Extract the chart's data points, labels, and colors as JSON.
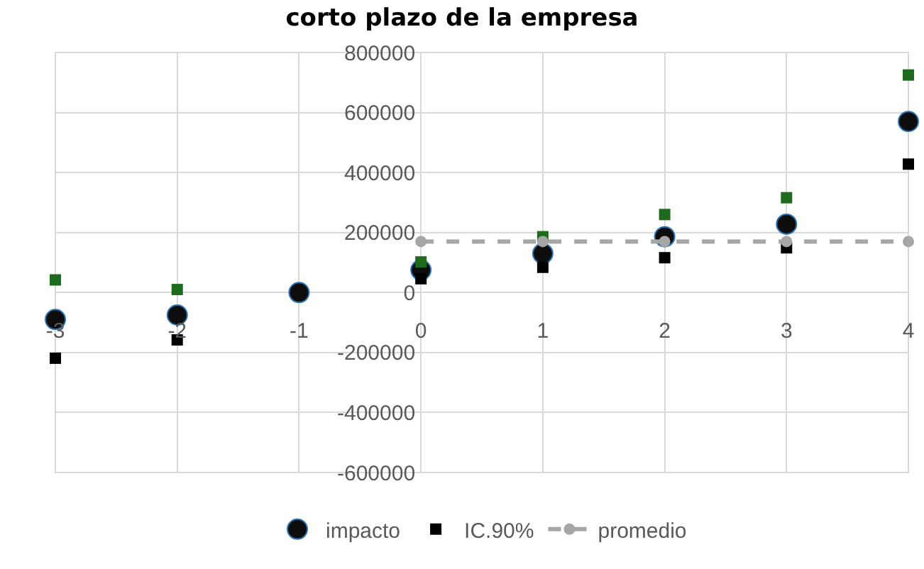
{
  "chart_data": {
    "type": "scatter",
    "title": "corto plazo de la empresa",
    "xlim": [
      -3,
      4
    ],
    "xticks": [
      -3,
      -2,
      -1,
      0,
      1,
      2,
      3,
      4
    ],
    "ylim": [
      -600000,
      800000
    ],
    "yticks": [
      -600000,
      -400000,
      -200000,
      0,
      200000,
      400000,
      600000,
      800000
    ],
    "grid": true,
    "legend": "bottom",
    "marker": "circle",
    "series": [
      {
        "name": "impacto",
        "color": "#0d0d0d",
        "x": [
          -3,
          -2,
          -1,
          0,
          1,
          2,
          3,
          4
        ],
        "values": [
          -90000,
          -75000,
          0,
          75000,
          130000,
          186000,
          228000,
          570000
        ]
      },
      {
        "name": "IC.90%",
        "color": "#000000",
        "marker": "square",
        "x": [
          -3,
          -2,
          0,
          1,
          2,
          3,
          4
        ],
        "values": [
          -219000,
          -158000,
          46000,
          84000,
          116000,
          149000,
          428000
        ]
      },
      {
        "color": "#1e6b1e",
        "marker": "square",
        "x": [
          -3,
          -2,
          0,
          1,
          2,
          3,
          4
        ],
        "values": [
          42000,
          10000,
          102000,
          186000,
          260000,
          316000,
          725000
        ]
      },
      {
        "name": "promedio",
        "type": "line",
        "color": "#a6a6a6",
        "line_style": "dashed",
        "x": [
          0,
          1,
          2,
          3,
          4
        ],
        "values": [
          170000,
          170000,
          170000,
          170000,
          170000
        ]
      }
    ]
  }
}
